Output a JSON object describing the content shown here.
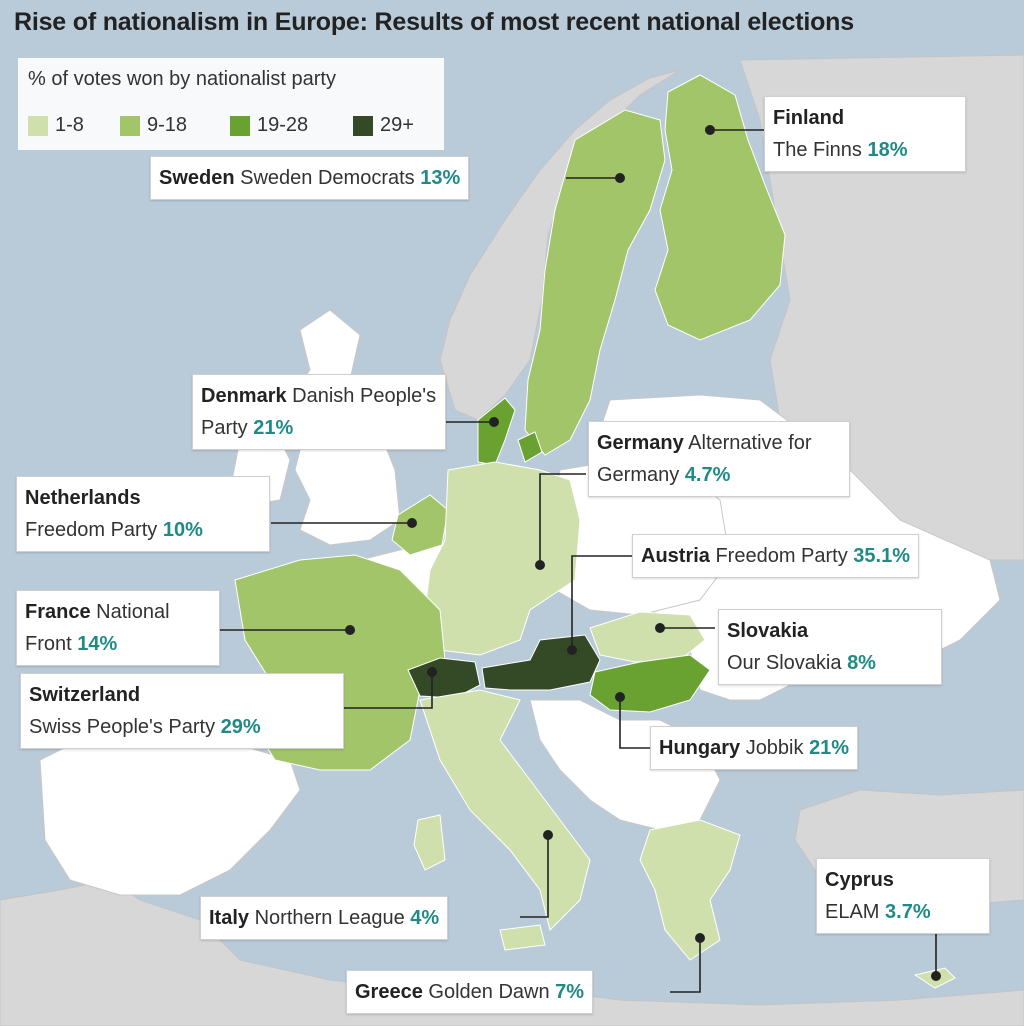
{
  "title": "Rise of nationalism in Europe: Results of most recent national elections",
  "legend": {
    "title": "% of votes won by nationalist party",
    "items": [
      {
        "label": "1-8",
        "color": "#cfe0ad"
      },
      {
        "label": "9-18",
        "color": "#a2c56a"
      },
      {
        "label": "19-28",
        "color": "#6aa232"
      },
      {
        "label": "29+",
        "color": "#344a26"
      }
    ]
  },
  "colors": {
    "sea": "#b9cad8",
    "land_other": "#ffffff",
    "land_non_eu": "#d7d7d7",
    "percent_text": "#1f8a86",
    "leader_line": "#222222"
  },
  "countries": [
    {
      "country": "Finland",
      "party": "The Finns",
      "percent": "18%",
      "value": 18,
      "category": "9-18"
    },
    {
      "country": "Sweden",
      "party": "Sweden Democrats",
      "percent": "13%",
      "value": 13,
      "category": "9-18"
    },
    {
      "country": "Denmark",
      "party": "Danish People's Party",
      "percent": "21%",
      "value": 21,
      "category": "19-28"
    },
    {
      "country": "Germany",
      "party": "Alternative for Germany",
      "percent": "4.7%",
      "value": 4.7,
      "category": "1-8"
    },
    {
      "country": "Netherlands",
      "party": "Freedom Party",
      "percent": "10%",
      "value": 10,
      "category": "9-18"
    },
    {
      "country": "Austria",
      "party": "Freedom Party",
      "percent": "35.1%",
      "value": 35.1,
      "category": "29+"
    },
    {
      "country": "France",
      "party": "National Front",
      "percent": "14%",
      "value": 14,
      "category": "9-18"
    },
    {
      "country": "Slovakia",
      "party": "Our Slovakia",
      "percent": "8%",
      "value": 8,
      "category": "1-8"
    },
    {
      "country": "Switzerland",
      "party": "Swiss People's Party",
      "percent": "29%",
      "value": 29,
      "category": "29+"
    },
    {
      "country": "Hungary",
      "party": "Jobbik",
      "percent": "21%",
      "value": 21,
      "category": "19-28"
    },
    {
      "country": "Cyprus",
      "party": "ELAM",
      "percent": "3.7%",
      "value": 3.7,
      "category": "1-8"
    },
    {
      "country": "Italy",
      "party": "Northern League",
      "percent": "4%",
      "value": 4,
      "category": "1-8"
    },
    {
      "country": "Greece",
      "party": "Golden Dawn",
      "percent": "7%",
      "value": 7,
      "category": "1-8"
    }
  ]
}
